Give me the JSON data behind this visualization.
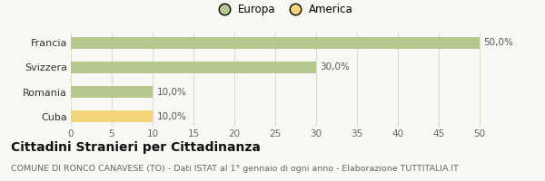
{
  "categories": [
    "Cuba",
    "Romania",
    "Svizzera",
    "Francia"
  ],
  "values": [
    10.0,
    10.0,
    30.0,
    50.0
  ],
  "colors": [
    "#f5d57a",
    "#b5c98e",
    "#b5c98e",
    "#b5c98e"
  ],
  "bar_labels": [
    "10,0%",
    "10,0%",
    "30,0%",
    "50,0%"
  ],
  "legend": [
    {
      "label": "Europa",
      "color": "#b5c98e"
    },
    {
      "label": "America",
      "color": "#f5d57a"
    }
  ],
  "xlim": [
    0,
    52
  ],
  "xticks": [
    0,
    5,
    10,
    15,
    20,
    25,
    30,
    35,
    40,
    45,
    50
  ],
  "title": "Cittadini Stranieri per Cittadinanza",
  "subtitle": "COMUNE DI RONCO CANAVESE (TO) - Dati ISTAT al 1° gennaio di ogni anno - Elaborazione TUTTITALIA.IT",
  "bg_color": "#f8f8f4",
  "grid_color": "#ddddcc",
  "bar_height": 0.5,
  "label_fontsize": 7.5,
  "title_fontsize": 10,
  "subtitle_fontsize": 6.8,
  "ytick_fontsize": 8,
  "xtick_fontsize": 7.5
}
